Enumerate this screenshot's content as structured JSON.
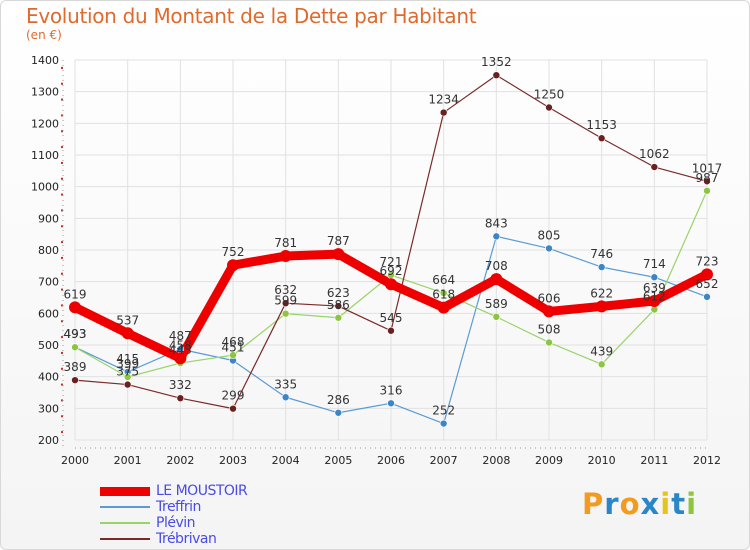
{
  "header": {
    "title": "Evolution du Montant de la Dette par Habitant",
    "subtitle": "(en €)"
  },
  "colors": {
    "title": "#e06a2e",
    "grid": "#e1e1e1",
    "axis_text": "#222222",
    "label_text": "#333333"
  },
  "chart_data": {
    "type": "line",
    "title": "Evolution du Montant de la Dette par Habitant",
    "subtitle": "(en €)",
    "xlabel": "",
    "ylabel": "",
    "x": [
      "2000",
      "2001",
      "2002",
      "2003",
      "2004",
      "2005",
      "2006",
      "2007",
      "2008",
      "2009",
      "2010",
      "2011",
      "2012"
    ],
    "ylim": [
      200,
      1400
    ],
    "yticks": [
      200,
      300,
      400,
      500,
      600,
      700,
      800,
      900,
      1000,
      1100,
      1200,
      1300,
      1400
    ],
    "grid": true,
    "legend_position": "bottom-left",
    "series": [
      {
        "name": "LE MOUSTOIR",
        "color": "#ee0000",
        "label_color": "#333333",
        "line_width": 9,
        "marker_radius": 6,
        "values": [
          619,
          537,
          458,
          752,
          781,
          787,
          692,
          618,
          708,
          606,
          622,
          639,
          723
        ]
      },
      {
        "name": "Treffrin",
        "color": "#5b9bd5",
        "label_color": "#333333",
        "line_width": 1.2,
        "marker_radius": 3.5,
        "marker_fill": "#3d85c6",
        "values": [
          493,
          415,
          487,
          451,
          335,
          286,
          316,
          252,
          843,
          805,
          746,
          714,
          652
        ]
      },
      {
        "name": "Plévin",
        "color": "#9ad36a",
        "label_color": "#333333",
        "line_width": 1.2,
        "marker_radius": 3.5,
        "marker_fill": "#8cc63f",
        "values": [
          493,
          399,
          443,
          468,
          599,
          586,
          721,
          664,
          589,
          508,
          439,
          612,
          987
        ]
      },
      {
        "name": "Trébrivan",
        "color": "#7b2a2a",
        "label_color": "#333333",
        "line_width": 1.2,
        "marker_radius": 3.5,
        "marker_fill": "#6b1f1f",
        "values": [
          389,
          375,
          332,
          299,
          632,
          623,
          545,
          1234,
          1352,
          1250,
          1153,
          1062,
          1017
        ]
      }
    ]
  },
  "legend": {
    "items": [
      {
        "label": "LE MOUSTOIR",
        "color": "#ee0000",
        "text_color": "#4a4ae8",
        "thickness": 9
      },
      {
        "label": "Treffrin",
        "color": "#5b9bd5",
        "text_color": "#4a4ae8",
        "thickness": 2
      },
      {
        "label": "Plévin",
        "color": "#9ad36a",
        "text_color": "#4a4ae8",
        "thickness": 2
      },
      {
        "label": "Trébrivan",
        "color": "#7b2a2a",
        "text_color": "#4a4ae8",
        "thickness": 2
      }
    ]
  },
  "logo": {
    "letters": [
      {
        "char": "P",
        "color": "#f39a1f"
      },
      {
        "char": "r",
        "color": "#2b86c9"
      },
      {
        "char": "o",
        "color": "#f39a1f"
      },
      {
        "char": "x",
        "color": "#2b86c9"
      },
      {
        "char": "i",
        "color": "#e8c21d"
      },
      {
        "char": "t",
        "color": "#2b86c9"
      },
      {
        "char": "i",
        "color": "#8cc63f"
      }
    ]
  }
}
